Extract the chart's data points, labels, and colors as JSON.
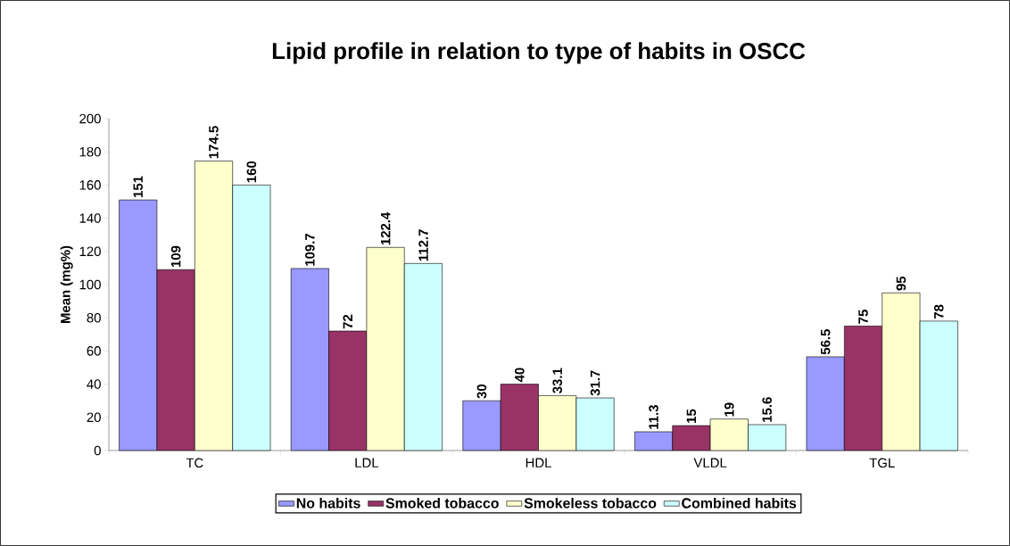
{
  "chart_data": {
    "type": "bar",
    "title": "Lipid profile in relation to type of habits in OSCC",
    "ylabel": "Mean (mg%)",
    "categories": [
      "TC",
      "LDL",
      "HDL",
      "VLDL",
      "TGL"
    ],
    "series": [
      {
        "name": "No habits",
        "color": "#9999ff",
        "values": [
          151,
          109.7,
          30,
          11.3,
          56.5
        ]
      },
      {
        "name": "Smoked tobacco",
        "color": "#993366",
        "values": [
          109,
          72,
          40,
          15,
          75
        ]
      },
      {
        "name": "Smokeless tobacco",
        "color": "#ffffcc",
        "values": [
          174.5,
          122.4,
          33.1,
          19,
          95
        ]
      },
      {
        "name": "Combined habits",
        "color": "#ccffff",
        "values": [
          160,
          112.7,
          31.7,
          15.6,
          78
        ]
      }
    ],
    "ylim": [
      0,
      200
    ],
    "yticks": [
      0,
      20,
      40,
      60,
      80,
      100,
      120,
      140,
      160,
      180,
      200
    ],
    "data_labels": true,
    "legend": "bottom"
  }
}
